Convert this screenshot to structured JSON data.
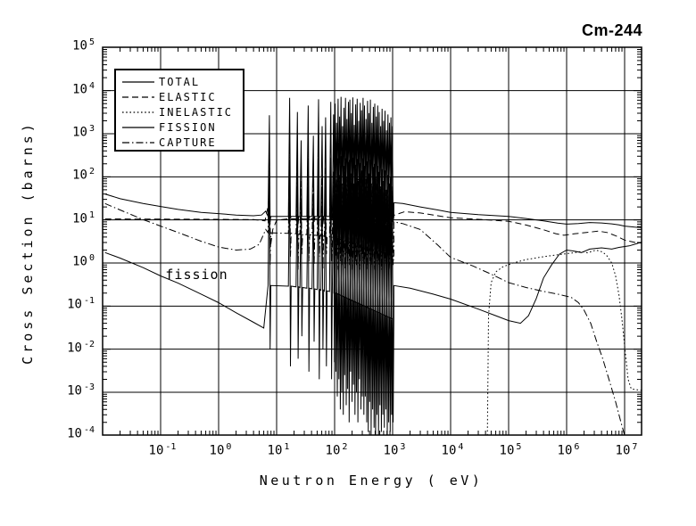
{
  "chart_data": {
    "type": "line",
    "title": "Cm-244",
    "xlabel": "Neutron Energy ( eV)",
    "ylabel": "Cross Section (barns)",
    "xscale": "log",
    "yscale": "log",
    "xlim": [
      0.01,
      20000000
    ],
    "ylim": [
      0.0001,
      100000
    ],
    "grid": true,
    "legend_position": "top-left",
    "x_tick_exponents": [
      -1,
      0,
      1,
      2,
      3,
      4,
      5,
      6,
      7
    ],
    "y_tick_exponents": [
      5,
      4,
      3,
      2,
      1,
      0,
      -1,
      -2,
      -3,
      -4
    ],
    "annotation": {
      "text": "fission",
      "x": 0.42,
      "y": 0.55
    },
    "line_color": "#000000",
    "series": [
      {
        "name": "TOTAL",
        "style": "solid",
        "resonance_role": "total",
        "points_low": [
          [
            0.011,
            40
          ],
          [
            0.02,
            31
          ],
          [
            0.05,
            24
          ],
          [
            0.1,
            20.5
          ],
          [
            0.2,
            17.5
          ],
          [
            0.5,
            15
          ],
          [
            1,
            14
          ],
          [
            2,
            13
          ],
          [
            4,
            12.5
          ],
          [
            5.5,
            13
          ],
          [
            6.5,
            16
          ]
        ],
        "points_high": [
          [
            1050,
            25
          ],
          [
            1500,
            24
          ],
          [
            3000,
            20
          ],
          [
            6000,
            17
          ],
          [
            10000,
            15
          ],
          [
            30000,
            13.2
          ],
          [
            100000,
            12
          ],
          [
            200000,
            10.8
          ],
          [
            400000,
            9.5
          ],
          [
            700000,
            8.4
          ],
          [
            1000000,
            8.0
          ],
          [
            1600000,
            8.2
          ],
          [
            2500000,
            8.7
          ],
          [
            4000000,
            8.5
          ],
          [
            6000000,
            8.1
          ],
          [
            8000000,
            7.7
          ],
          [
            10000000,
            7.2
          ],
          [
            15000000,
            6.8
          ],
          [
            20000000,
            6.6
          ]
        ]
      },
      {
        "name": "ELASTIC",
        "style": "dash",
        "points": [
          [
            0.011,
            10.5
          ],
          [
            0.1,
            10.4
          ],
          [
            1,
            10.3
          ],
          [
            4,
            10.2
          ],
          [
            6.3,
            9.5
          ],
          [
            7.1,
            20
          ],
          [
            7.5,
            45
          ],
          [
            7.9,
            2.5
          ],
          [
            8.6,
            6
          ],
          [
            10,
            9.8
          ],
          [
            15,
            10.5
          ],
          [
            30,
            10.6
          ],
          [
            100,
            10.8
          ],
          [
            400,
            11
          ],
          [
            1000,
            12.5
          ],
          [
            1600,
            15.5
          ],
          [
            3000,
            14.5
          ],
          [
            6000,
            12.5
          ],
          [
            10000,
            11.2
          ],
          [
            30000,
            10.3
          ],
          [
            100000,
            9.3
          ],
          [
            200000,
            7.6
          ],
          [
            400000,
            5.9
          ],
          [
            650000,
            4.8
          ],
          [
            900000,
            4.4
          ],
          [
            1400000,
            4.8
          ],
          [
            2200000,
            5.1
          ],
          [
            3500000,
            5.5
          ],
          [
            5000000,
            5.1
          ],
          [
            7000000,
            4.3
          ],
          [
            10000000,
            3.4
          ],
          [
            15000000,
            3.0
          ],
          [
            20000000,
            2.9
          ]
        ]
      },
      {
        "name": "INELASTIC",
        "style": "dot",
        "points": [
          [
            43000,
            0.0001
          ],
          [
            45000,
            0.06
          ],
          [
            50000,
            0.35
          ],
          [
            60000,
            0.62
          ],
          [
            80000,
            0.82
          ],
          [
            120000,
            1.0
          ],
          [
            200000,
            1.2
          ],
          [
            400000,
            1.4
          ],
          [
            700000,
            1.55
          ],
          [
            1200000,
            1.7
          ],
          [
            1800000,
            1.85
          ],
          [
            2300000,
            1.72
          ],
          [
            3200000,
            2.0
          ],
          [
            4200000,
            1.8
          ],
          [
            5000000,
            1.45
          ],
          [
            6000000,
            1.0
          ],
          [
            7000000,
            0.5
          ],
          [
            8000000,
            0.18
          ],
          [
            9000000,
            0.05
          ],
          [
            10000000,
            0.012
          ],
          [
            11500000,
            0.002
          ],
          [
            13000000,
            0.0012
          ],
          [
            20000000,
            0.0011
          ]
        ]
      },
      {
        "name": "FISSION",
        "style": "solid",
        "resonance_role": "fission",
        "points_low": [
          [
            0.011,
            1.75
          ],
          [
            0.02,
            1.3
          ],
          [
            0.05,
            0.78
          ],
          [
            0.1,
            0.5
          ],
          [
            0.2,
            0.34
          ],
          [
            0.5,
            0.19
          ],
          [
            1,
            0.12
          ],
          [
            2,
            0.07
          ],
          [
            4,
            0.042
          ],
          [
            6,
            0.031
          ]
        ],
        "points_high": [
          [
            1050,
            0.3
          ],
          [
            2000,
            0.26
          ],
          [
            5000,
            0.19
          ],
          [
            10000,
            0.145
          ],
          [
            30000,
            0.085
          ],
          [
            60000,
            0.06
          ],
          [
            100000,
            0.046
          ],
          [
            160000,
            0.04
          ],
          [
            220000,
            0.06
          ],
          [
            300000,
            0.15
          ],
          [
            400000,
            0.45
          ],
          [
            550000,
            0.9
          ],
          [
            750000,
            1.6
          ],
          [
            1000000,
            2.0
          ],
          [
            1300000,
            1.9
          ],
          [
            1800000,
            1.75
          ],
          [
            2500000,
            2.1
          ],
          [
            4000000,
            2.25
          ],
          [
            6000000,
            2.1
          ],
          [
            8000000,
            2.3
          ],
          [
            12000000,
            2.5
          ],
          [
            16000000,
            2.8
          ],
          [
            20000000,
            3.1
          ]
        ]
      },
      {
        "name": "CAPTURE",
        "style": "dashdot",
        "resonance_role": "capture",
        "points_low": [
          [
            0.011,
            24
          ],
          [
            0.02,
            17
          ],
          [
            0.05,
            10.2
          ],
          [
            0.1,
            7.2
          ],
          [
            0.2,
            5.1
          ],
          [
            0.5,
            3.2
          ],
          [
            1,
            2.35
          ],
          [
            2,
            2.0
          ],
          [
            3.5,
            2.1
          ],
          [
            5,
            2.7
          ],
          [
            6.5,
            6
          ]
        ],
        "points_high": [
          [
            1050,
            9
          ],
          [
            1500,
            8.2
          ],
          [
            3000,
            6
          ],
          [
            6000,
            2.6
          ],
          [
            10000,
            1.35
          ],
          [
            24000,
            0.86
          ],
          [
            50000,
            0.55
          ],
          [
            100000,
            0.35
          ],
          [
            200000,
            0.27
          ],
          [
            400000,
            0.22
          ],
          [
            700000,
            0.19
          ],
          [
            1200000,
            0.16
          ],
          [
            1600000,
            0.12
          ],
          [
            2000000,
            0.08
          ],
          [
            2600000,
            0.04
          ],
          [
            3300000,
            0.015
          ],
          [
            4200000,
            0.006
          ],
          [
            5500000,
            0.0018
          ],
          [
            7000000,
            0.0006
          ],
          [
            8500000,
            0.00022
          ],
          [
            10000000,
            0.0001
          ]
        ]
      }
    ],
    "resonance_region": {
      "energies": [
        7.5,
        16.8,
        22.8,
        26.5,
        35,
        43,
        52.8,
        61,
        70,
        86,
        96,
        102,
        108,
        115,
        122,
        129,
        137,
        145,
        154,
        163,
        173,
        183,
        194,
        206,
        218,
        231,
        245,
        260,
        276,
        292,
        310,
        328,
        348,
        369,
        391,
        414,
        439,
        465,
        493,
        523,
        554,
        587,
        622,
        659,
        699,
        741,
        785,
        832,
        882,
        935,
        991
      ],
      "total_peaks": [
        2700,
        6800,
        3200,
        700,
        4500,
        900,
        6300,
        1500,
        2400,
        5500,
        2800,
        5000,
        1800,
        6500,
        2500,
        7200,
        1500,
        4000,
        6800,
        2200,
        5500,
        6200,
        3000,
        7000,
        1600,
        4800,
        6500,
        2000,
        5200,
        3500,
        6800,
        4500,
        2200,
        5800,
        3000,
        6200,
        1800,
        4200,
        5000,
        2500,
        4500,
        3200,
        1500,
        3800,
        2000,
        3400,
        1200,
        2800,
        1800,
        2400,
        1500
      ],
      "total_valleys": [
        9,
        11,
        8,
        12,
        10,
        9,
        11,
        8,
        12,
        10,
        9,
        11,
        8,
        12,
        10,
        9,
        11,
        8,
        12,
        10,
        9,
        11,
        8,
        12,
        10,
        9,
        11,
        8,
        12,
        10,
        9,
        11,
        8,
        12,
        10,
        9,
        11,
        8,
        12,
        10,
        9,
        11,
        8,
        12,
        10,
        9,
        11,
        8,
        12,
        10,
        9
      ],
      "fission_peaks": [
        300,
        250,
        120,
        30,
        180,
        40,
        260,
        60,
        100,
        220,
        110,
        200,
        70,
        260,
        100,
        300,
        60,
        160,
        270,
        90,
        220,
        250,
        120,
        280,
        65,
        190,
        260,
        80,
        210,
        140,
        270,
        180,
        90,
        230,
        120,
        250,
        70,
        170,
        200,
        100,
        180,
        130,
        60,
        150,
        80,
        140,
        50,
        110,
        70,
        100,
        60
      ],
      "fission_valleys": [
        0.01,
        0.004,
        0.006,
        0.02,
        0.003,
        0.015,
        0.002,
        0.01,
        0.004,
        0.002,
        0.005,
        0.003,
        0.0008,
        0.002,
        0.0004,
        0.001,
        0.0003,
        0.0025,
        0.0005,
        0.0012,
        0.0002,
        0.003,
        0.0006,
        0.0015,
        0.0003,
        0.001,
        0.0002,
        0.002,
        0.0004,
        0.0008,
        0.0003,
        0.0008,
        0.0002,
        0.00012,
        0.0006,
        0.0001,
        0.0004,
        0.00015,
        8e-05,
        0.0003,
        0.0001,
        0.0005,
        0.00012,
        0.0003,
        0.00015,
        0.0004,
        0.0001,
        0.0002,
        0.00012,
        0.0003,
        0.0002
      ],
      "capture_peaks": [
        900,
        420,
        260,
        80,
        310,
        90,
        360,
        110,
        160,
        280,
        140,
        220,
        90,
        270,
        110,
        300,
        70,
        180,
        260,
        100,
        230,
        240,
        120,
        260,
        70,
        190,
        240,
        90,
        200,
        140,
        250,
        170,
        90,
        210,
        110,
        220,
        70,
        160,
        180,
        90,
        160,
        120,
        60,
        130,
        70,
        120,
        50,
        100,
        60,
        90,
        50
      ],
      "capture_valleys": [
        0.9,
        1.4,
        0.7,
        1.6,
        1.1,
        0.9,
        1.4,
        0.7,
        1.6,
        1.1,
        0.9,
        1.4,
        0.7,
        1.6,
        1.1,
        0.9,
        1.4,
        0.7,
        1.6,
        1.1,
        0.9,
        1.4,
        0.7,
        1.6,
        1.1,
        0.9,
        1.4,
        0.7,
        1.6,
        1.1,
        0.9,
        1.4,
        0.7,
        1.6,
        1.1,
        0.9,
        1.4,
        0.7,
        1.6,
        1.1,
        0.9,
        1.4,
        0.7,
        1.6,
        1.1,
        0.9,
        1.4,
        0.7,
        1.6,
        1.1,
        0.9
      ],
      "bases": {
        "total": [
          12,
          12
        ],
        "fission": [
          0.3,
          0.05
        ],
        "capture": [
          5,
          1.5
        ]
      }
    }
  }
}
